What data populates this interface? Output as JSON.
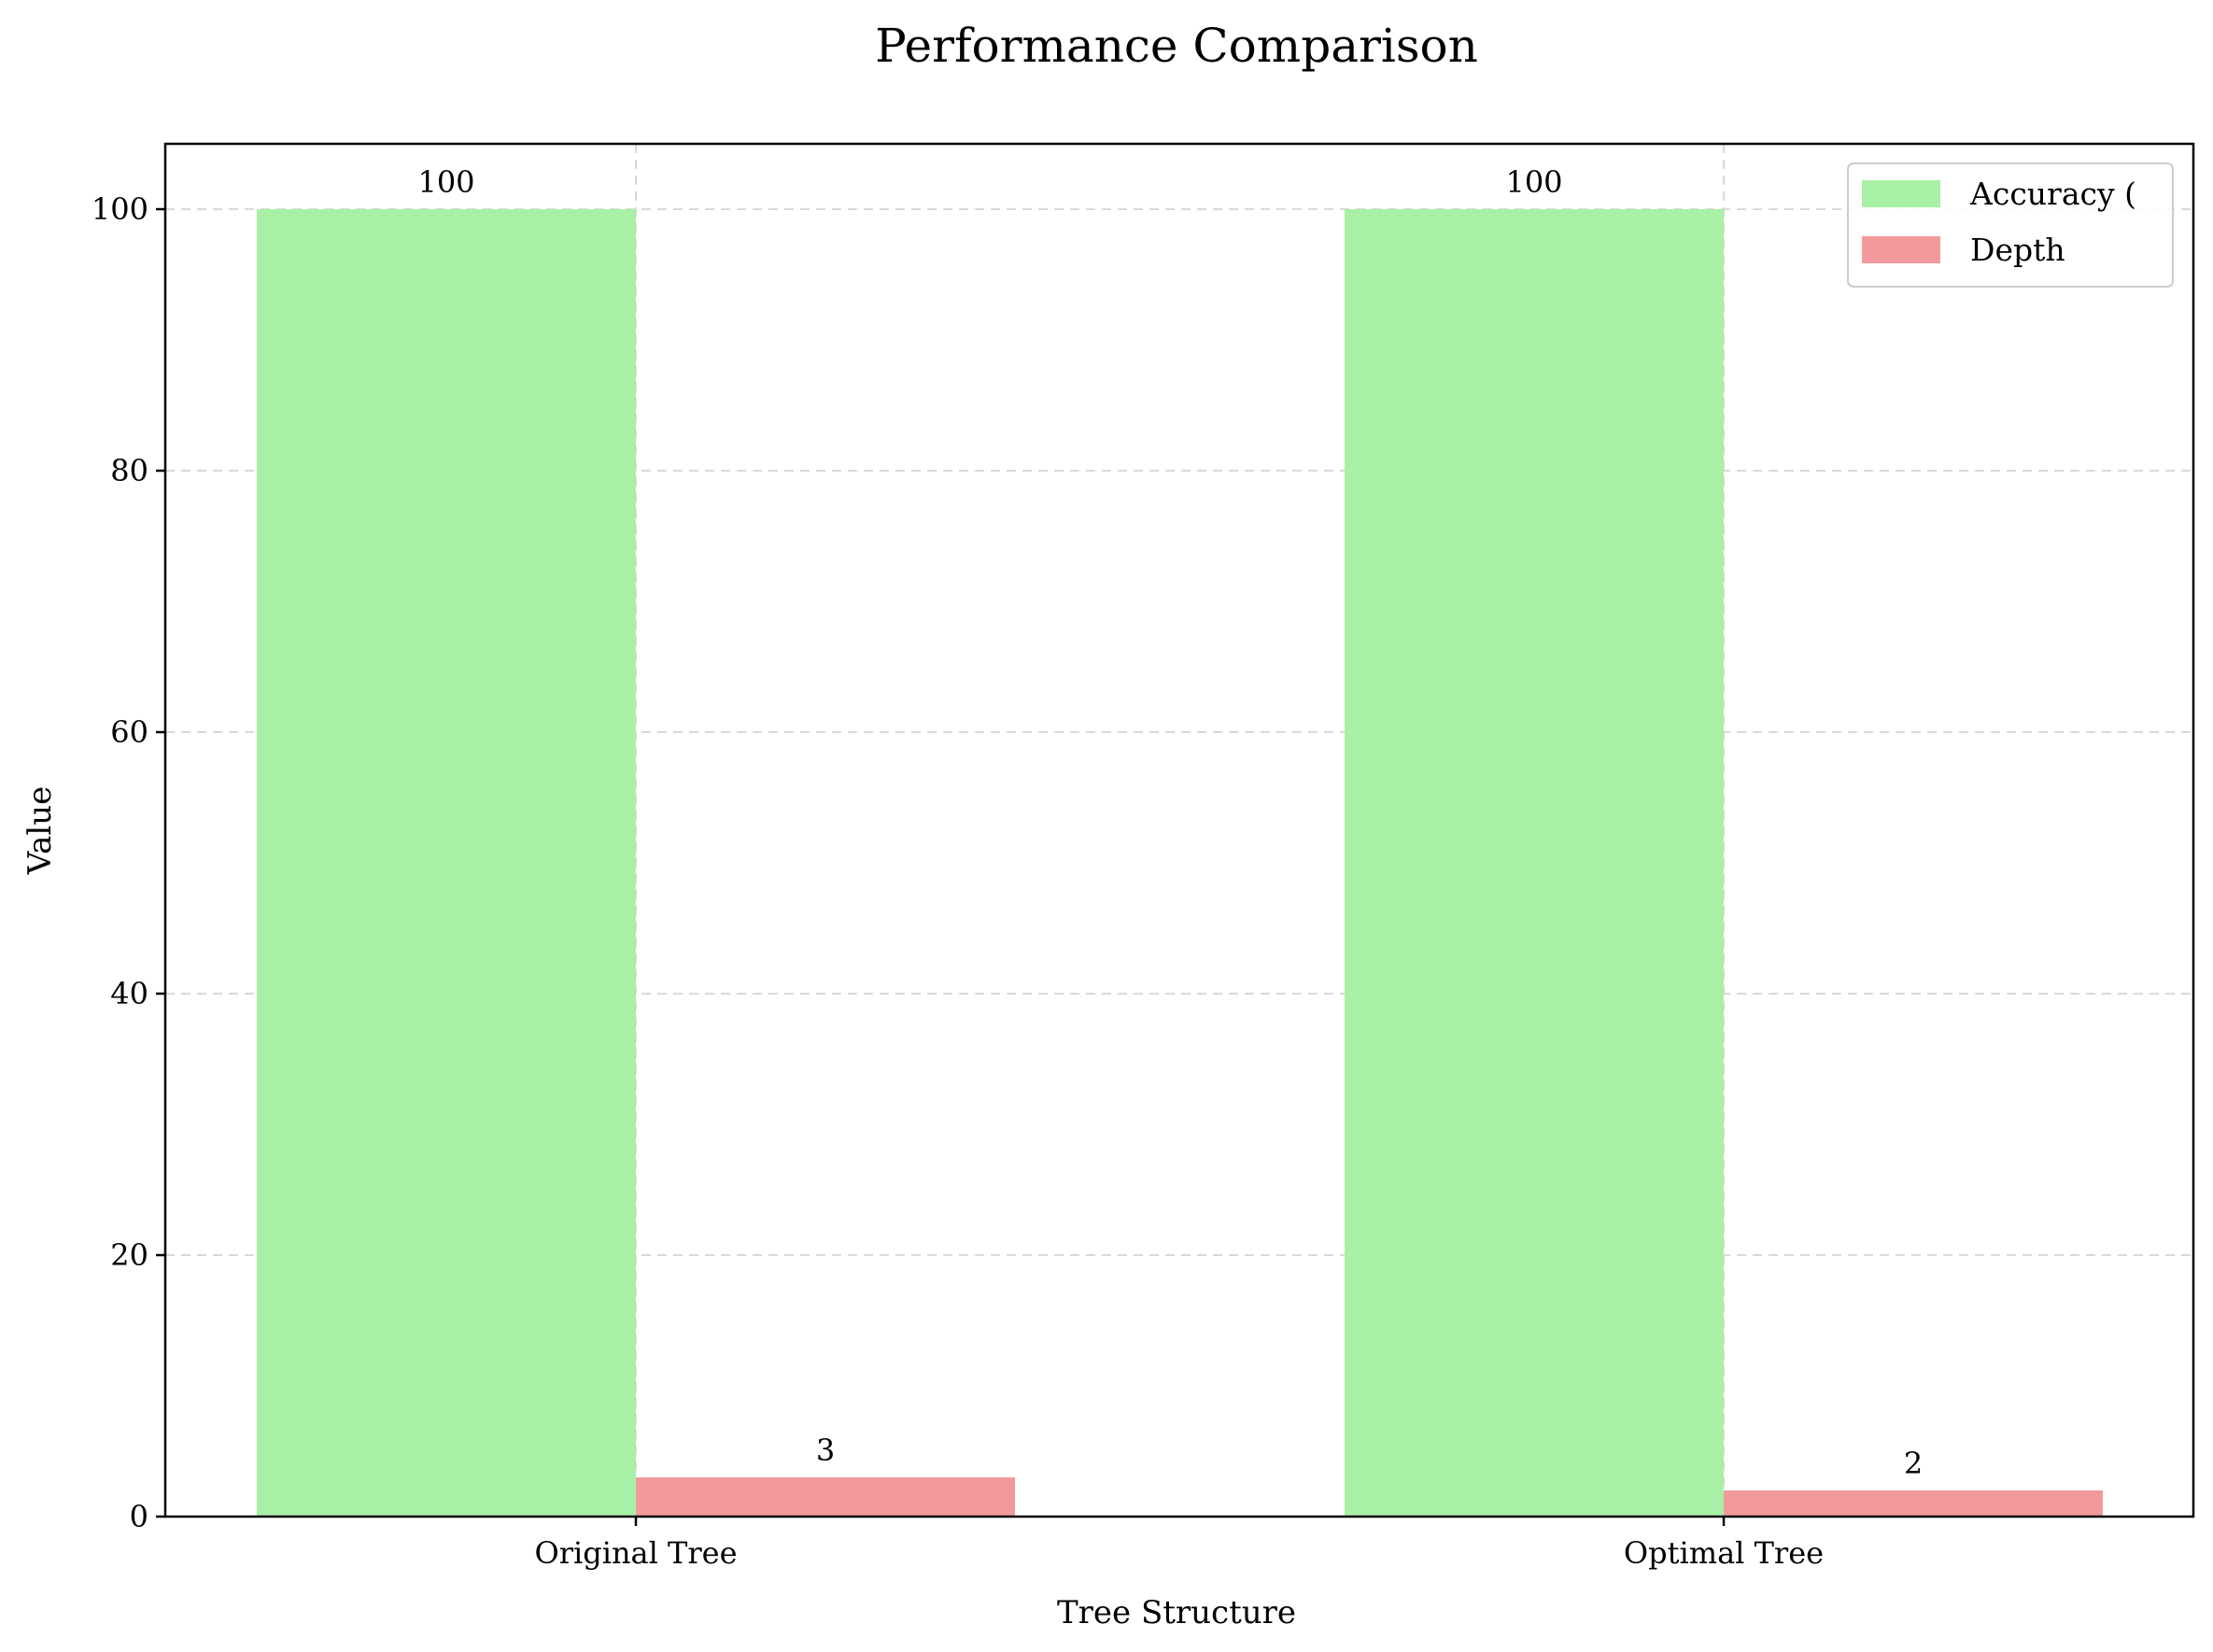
{
  "chart_data": {
    "type": "bar",
    "title": "Performance Comparison",
    "xlabel": "Tree Structure",
    "ylabel": "Value",
    "categories": [
      "Original Tree",
      "Optimal Tree"
    ],
    "series": [
      {
        "name": "Accuracy (",
        "values": [
          100,
          100
        ],
        "color": "#a8f0a5"
      },
      {
        "name": "Depth",
        "values": [
          3,
          2
        ],
        "color": "#f29a9b"
      }
    ],
    "data_labels": {
      "Accuracy (": [
        "100",
        "100"
      ],
      "Depth": [
        "3",
        "2"
      ]
    },
    "yticks": [
      0,
      20,
      40,
      60,
      80,
      100
    ],
    "ylim": [
      0,
      105
    ],
    "grid": true,
    "legend_position": "top-right"
  }
}
